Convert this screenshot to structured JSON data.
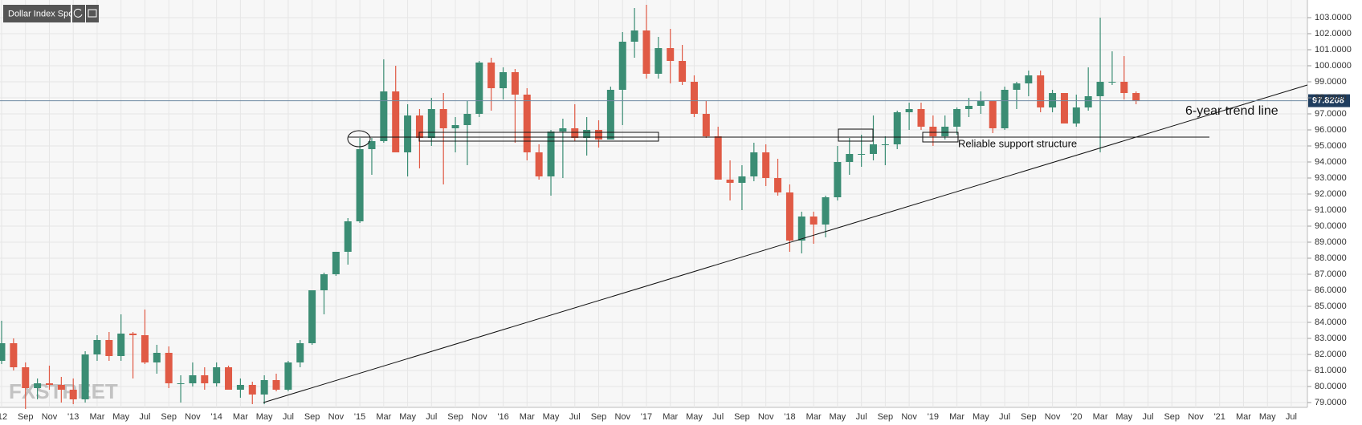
{
  "chart_data": {
    "type": "candlestick",
    "title": "Dollar Index Spot",
    "categories": [
      "'12",
      null,
      "Sep",
      null,
      "Nov",
      null,
      "'13",
      null,
      "Mar",
      null,
      "May",
      null,
      "Jul",
      null,
      "Sep",
      null,
      "Nov",
      null,
      "'14",
      null,
      "Mar",
      null,
      "May",
      null,
      "Jul",
      null,
      "Sep",
      null,
      "Nov",
      null,
      "'15",
      null,
      "Mar",
      null,
      "May",
      null,
      "Jul",
      null,
      "Sep",
      null,
      "Nov",
      null,
      "'16",
      null,
      "Mar",
      null,
      "May",
      null,
      "Jul",
      null,
      "Sep",
      null,
      "Nov",
      null,
      "'17",
      null,
      "Mar",
      null,
      "May",
      null,
      "Jul",
      null,
      "Sep",
      null,
      "Nov",
      null,
      "'18",
      null,
      "Mar",
      null,
      "May",
      null,
      "Jul",
      null,
      "Sep",
      null,
      "Nov",
      null,
      "'19",
      null,
      "Mar",
      null,
      "May",
      null,
      "Jul",
      null,
      "Sep",
      null,
      "Nov",
      null,
      "'20",
      null,
      "Mar",
      null,
      "May",
      null,
      "Jul",
      null,
      "Sep",
      null,
      "Nov",
      null,
      "'21",
      null,
      "Mar",
      null,
      "May",
      null,
      "Jul"
    ],
    "open": [
      81.6,
      82.7,
      81.2,
      79.9,
      80.2,
      80.1,
      79.8,
      79.2,
      82.0,
      82.9,
      81.9,
      83.3,
      83.2,
      81.5,
      82.1,
      80.2,
      80.2,
      80.7,
      80.2,
      81.2,
      79.8,
      80.1,
      79.5,
      80.4,
      79.8,
      81.5,
      82.7,
      86.0,
      87.0,
      88.4,
      90.3,
      94.8,
      95.3,
      98.4,
      94.6,
      96.9,
      95.5,
      97.3,
      96.1,
      96.3,
      97.0,
      100.2,
      98.6,
      99.6,
      98.2,
      94.6,
      93.1,
      95.9,
      96.1,
      95.5,
      96.0,
      95.4,
      98.5,
      101.5,
      102.2,
      99.5,
      101.1,
      100.3,
      99.0,
      97.0,
      95.6,
      92.9,
      92.7,
      93.1,
      94.6,
      93.0,
      92.1,
      89.1,
      90.6,
      90.1,
      91.8,
      94.0,
      94.5,
      94.5,
      95.1,
      95.1,
      97.1,
      97.3,
      96.2,
      95.6,
      96.2,
      97.3,
      97.5,
      97.8,
      96.1,
      98.5,
      98.9,
      99.4,
      97.4,
      98.3,
      96.4,
      97.4,
      98.1,
      99.0,
      99.0,
      98.3,
      null,
      null,
      null,
      null,
      null,
      null,
      null,
      null,
      null,
      null,
      null,
      null,
      null
    ],
    "high": [
      84.1,
      83.0,
      81.5,
      80.5,
      81.3,
      80.6,
      80.5,
      82.2,
      83.2,
      83.4,
      84.5,
      83.4,
      84.8,
      82.6,
      82.5,
      80.7,
      81.5,
      81.2,
      81.5,
      81.3,
      80.5,
      80.3,
      80.7,
      80.8,
      81.6,
      82.9,
      86.0,
      87.1,
      88.4,
      90.5,
      95.5,
      95.5,
      100.4,
      100.0,
      97.6,
      97.3,
      98.0,
      98.3,
      96.8,
      97.8,
      100.3,
      100.5,
      99.9,
      99.8,
      98.6,
      95.1,
      96.0,
      96.7,
      97.6,
      96.8,
      96.6,
      98.7,
      102.1,
      103.6,
      103.8,
      101.8,
      102.3,
      101.3,
      99.4,
      97.8,
      96.2,
      94.1,
      93.8,
      95.2,
      95.1,
      94.2,
      92.6,
      90.9,
      90.9,
      91.9,
      95.0,
      95.5,
      95.7,
      96.9,
      95.6,
      97.2,
      97.7,
      97.7,
      96.9,
      96.9,
      97.4,
      98.0,
      98.4,
      97.8,
      98.7,
      99.0,
      99.7,
      99.7,
      98.5,
      98.3,
      98.2,
      99.9,
      103.0,
      100.9,
      100.6,
      98.4,
      null,
      null,
      null,
      null,
      null,
      null,
      null,
      null,
      null,
      null,
      null,
      null,
      null
    ],
    "low": [
      81.4,
      81.0,
      78.6,
      79.2,
      79.8,
      79.0,
      78.9,
      79.0,
      81.6,
      81.6,
      81.6,
      80.5,
      81.4,
      80.8,
      79.9,
      79.0,
      80.0,
      79.8,
      80.0,
      79.8,
      79.3,
      78.9,
      78.9,
      79.7,
      79.7,
      81.2,
      82.6,
      84.5,
      86.9,
      87.6,
      90.2,
      93.2,
      95.2,
      94.6,
      93.1,
      93.6,
      95.0,
      92.6,
      94.6,
      93.8,
      96.8,
      97.2,
      97.9,
      95.2,
      94.1,
      92.9,
      91.9,
      93.0,
      95.3,
      94.4,
      94.9,
      95.4,
      96.3,
      100.5,
      99.2,
      99.2,
      98.9,
      98.8,
      96.8,
      95.5,
      92.9,
      91.6,
      91.0,
      92.8,
      92.5,
      91.9,
      88.4,
      88.3,
      88.9,
      89.3,
      91.6,
      93.2,
      93.7,
      94.1,
      93.8,
      94.8,
      96.0,
      96.0,
      95.0,
      95.4,
      95.7,
      96.8,
      97.0,
      95.8,
      96.0,
      97.3,
      98.1,
      97.1,
      97.1,
      96.4,
      96.2,
      97.2,
      94.6,
      98.8,
      97.9,
      97.6,
      null,
      null,
      null,
      null,
      null,
      null,
      null,
      null,
      null,
      null,
      null,
      null,
      null
    ],
    "close": [
      82.7,
      81.2,
      79.9,
      80.2,
      80.1,
      79.8,
      79.2,
      82.0,
      82.9,
      81.9,
      83.3,
      83.2,
      81.5,
      82.1,
      80.2,
      80.2,
      80.7,
      80.2,
      81.2,
      79.8,
      80.1,
      79.5,
      80.4,
      79.8,
      81.5,
      82.7,
      86.0,
      87.0,
      88.4,
      90.3,
      94.8,
      95.3,
      98.4,
      94.6,
      96.9,
      95.5,
      97.3,
      96.1,
      96.3,
      97.0,
      100.2,
      98.6,
      99.6,
      98.2,
      94.6,
      93.1,
      95.9,
      96.1,
      95.5,
      96.0,
      95.4,
      98.5,
      101.5,
      102.2,
      99.5,
      101.1,
      100.3,
      99.0,
      97.0,
      95.6,
      92.9,
      92.7,
      93.1,
      94.6,
      93.0,
      92.1,
      89.1,
      90.6,
      90.1,
      91.8,
      94.0,
      94.5,
      94.5,
      95.1,
      95.1,
      97.1,
      97.3,
      96.2,
      95.6,
      96.2,
      97.3,
      97.5,
      97.8,
      96.1,
      98.5,
      98.9,
      99.4,
      97.4,
      98.3,
      96.4,
      97.4,
      98.1,
      99.0,
      99.0,
      98.3,
      97.8,
      null,
      null,
      null,
      null,
      null,
      null,
      null,
      null,
      null,
      null,
      null,
      null,
      null
    ],
    "up_color": "#3b8d74",
    "down_color": "#e05a45",
    "ylim": [
      78.7,
      104.1
    ],
    "yticks": [
      {
        "value": 79,
        "label": "79.0000"
      },
      {
        "value": 80,
        "label": "80.0000"
      },
      {
        "value": 81,
        "label": "81.0000"
      },
      {
        "value": 82,
        "label": "82.0000"
      },
      {
        "value": 83,
        "label": "83.0000"
      },
      {
        "value": 84,
        "label": "84.0000"
      },
      {
        "value": 85,
        "label": "85.0000"
      },
      {
        "value": 86,
        "label": "86.0000"
      },
      {
        "value": 87,
        "label": "87.0000"
      },
      {
        "value": 88,
        "label": "88.0000"
      },
      {
        "value": 89,
        "label": "89.0000"
      },
      {
        "value": 90,
        "label": "90.0000"
      },
      {
        "value": 91,
        "label": "91.0000"
      },
      {
        "value": 92,
        "label": "92.0000"
      },
      {
        "value": 93,
        "label": "93.0000"
      },
      {
        "value": 94,
        "label": "94.0000"
      },
      {
        "value": 95,
        "label": "95.0000"
      },
      {
        "value": 96,
        "label": "96.0000"
      },
      {
        "value": 97,
        "label": "97.0000"
      },
      {
        "value": 98,
        "label": "98.0000"
      },
      {
        "value": 99,
        "label": "99.0000"
      },
      {
        "value": 100,
        "label": "100.0000"
      },
      {
        "value": 101,
        "label": "101.0000"
      },
      {
        "value": 102,
        "label": "102.0000"
      },
      {
        "value": 103,
        "label": "103.0000"
      }
    ],
    "grid": true,
    "last_price": 97.8208,
    "annotations": [
      "6-year trend line",
      "Reliable support structure"
    ],
    "watermark": "FXSTREET"
  }
}
